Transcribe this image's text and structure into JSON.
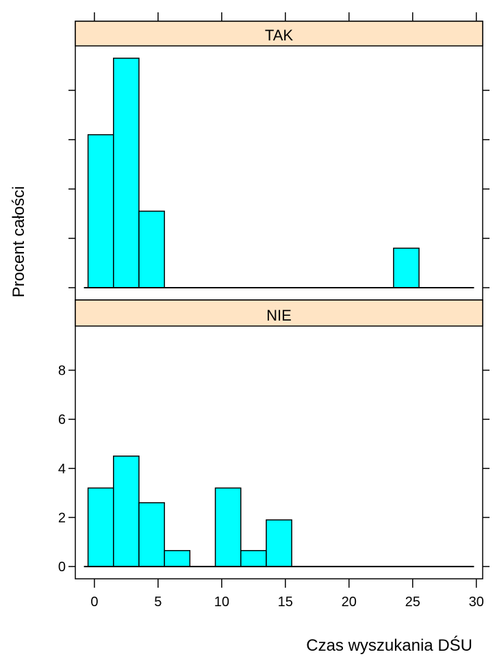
{
  "chart_data": {
    "type": "bar",
    "layout": "lattice histogram, 2 stacked panels",
    "xlabel": "Czas wyszukania DŚU",
    "ylabel": "Procent całości",
    "xlim": [
      -1.5,
      30.5
    ],
    "ylim": [
      -0.5,
      9.8
    ],
    "x_ticks": [
      0,
      5,
      10,
      15,
      20,
      25,
      30
    ],
    "y_ticks": [
      0,
      2,
      4,
      6,
      8
    ],
    "bin_width": 2,
    "bin_edges": [
      -0.5,
      1.5,
      3.5,
      5.5,
      7.5,
      9.5,
      11.5,
      13.5,
      15.5,
      17.5,
      19.5,
      21.5,
      23.5,
      25.5,
      27.5,
      29.5
    ],
    "colors": {
      "bar_fill": "#00ffff",
      "bar_stroke": "#000000",
      "strip_bg": "#ffe4c4"
    },
    "panels": [
      {
        "name": "TAK",
        "values": [
          6.2,
          9.3,
          3.1,
          0,
          0,
          0,
          0,
          0,
          0,
          0,
          0,
          0,
          1.6,
          0,
          0
        ]
      },
      {
        "name": "NIE",
        "values": [
          3.2,
          4.5,
          2.6,
          0.65,
          0,
          3.2,
          0.65,
          1.9,
          0,
          0,
          0,
          0,
          0,
          0,
          0
        ]
      }
    ]
  }
}
